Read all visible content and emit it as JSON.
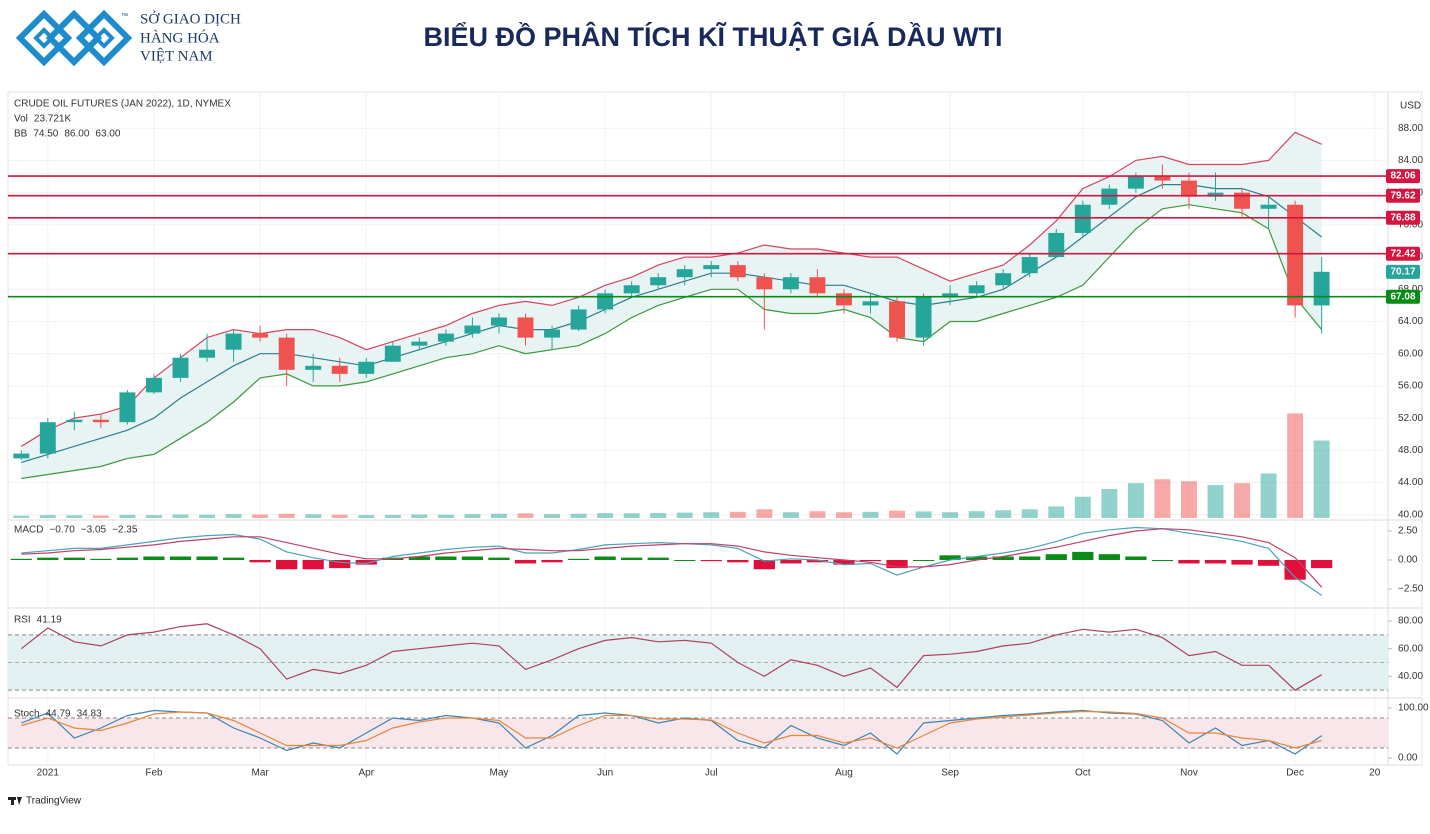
{
  "header": {
    "company": [
      "SỞ GIAO DỊCH",
      "HÀNG HÓA",
      "VIỆT NAM"
    ],
    "trademark": "™",
    "title": "BIỂU ĐỒ PHÂN TÍCH KĨ THUẬT GIÁ DẦU WTI"
  },
  "footer": {
    "brand": "TradingView"
  },
  "chart_data": [
    {
      "type": "candlestick",
      "legend_title": "CRUDE OIL FUTURES (JAN 2022), 1D, NYMEX",
      "currency": "USD",
      "grid": true,
      "categories": [
        null,
        "2021",
        null,
        null,
        null,
        "Feb",
        null,
        null,
        null,
        "Mar",
        null,
        null,
        null,
        "Apr",
        null,
        null,
        null,
        null,
        "May",
        null,
        null,
        null,
        "Jun",
        null,
        null,
        null,
        "Jul",
        null,
        null,
        null,
        null,
        "Aug",
        null,
        null,
        null,
        "Sep",
        null,
        null,
        null,
        null,
        "Oct",
        null,
        null,
        null,
        "Nov",
        null,
        null,
        null,
        "Dec",
        null,
        null,
        "20"
      ],
      "open": [
        47.0,
        47.6,
        51.5,
        51.8,
        51.5,
        55.2,
        57.0,
        59.5,
        60.5,
        62.5,
        62.0,
        58.0,
        58.5,
        57.5,
        59.0,
        61.0,
        61.5,
        62.5,
        63.5,
        64.5,
        62.0,
        63.0,
        65.5,
        67.5,
        68.5,
        69.5,
        70.5,
        71.0,
        69.5,
        68.0,
        69.5,
        67.5,
        66.0,
        66.5,
        62.0,
        67.0,
        67.5,
        68.5,
        70.0,
        72.0,
        75.0,
        78.5,
        80.5,
        82.0,
        81.5,
        79.5,
        80.0,
        78.0,
        78.5,
        66.0,
        null,
        null
      ],
      "high": [
        48.0,
        52.0,
        52.8,
        52.5,
        55.5,
        57.5,
        60.0,
        62.5,
        63.0,
        63.5,
        62.5,
        60.0,
        59.5,
        59.5,
        61.5,
        62.0,
        63.0,
        64.5,
        65.0,
        65.0,
        63.5,
        66.0,
        68.0,
        69.0,
        70.0,
        71.0,
        71.5,
        71.5,
        70.0,
        70.0,
        70.5,
        68.0,
        67.5,
        67.0,
        67.5,
        68.5,
        69.0,
        70.5,
        72.5,
        75.5,
        79.0,
        81.0,
        82.5,
        83.5,
        82.5,
        82.5,
        80.5,
        79.5,
        79.0,
        72.0,
        null,
        null
      ],
      "low": [
        46.8,
        47.0,
        50.5,
        50.8,
        51.2,
        55.0,
        56.5,
        59.0,
        59.0,
        61.5,
        56.0,
        56.5,
        56.5,
        57.0,
        59.0,
        60.5,
        61.0,
        62.0,
        62.5,
        61.0,
        60.5,
        62.8,
        65.0,
        67.0,
        68.0,
        68.5,
        69.5,
        69.0,
        63.0,
        67.5,
        67.0,
        65.0,
        65.0,
        61.5,
        61.0,
        66.0,
        67.0,
        68.0,
        69.5,
        72.0,
        74.5,
        78.0,
        80.0,
        80.5,
        78.0,
        79.0,
        77.0,
        75.5,
        64.5,
        62.5,
        null,
        null
      ],
      "close": [
        47.6,
        51.5,
        51.8,
        51.5,
        55.2,
        57.0,
        59.5,
        60.5,
        62.5,
        62.0,
        58.0,
        58.5,
        57.5,
        59.0,
        61.0,
        61.5,
        62.5,
        63.5,
        64.5,
        62.0,
        63.0,
        65.5,
        67.5,
        68.5,
        69.5,
        70.5,
        71.0,
        69.5,
        68.0,
        69.5,
        67.5,
        66.0,
        66.5,
        62.0,
        67.0,
        67.5,
        68.5,
        70.0,
        72.0,
        75.0,
        78.5,
        80.5,
        82.0,
        81.5,
        79.5,
        80.0,
        78.0,
        78.5,
        66.0,
        70.17,
        null,
        null
      ],
      "up_color": "#26a69a",
      "down_color": "#ef5350",
      "bollinger": {
        "name": "BB",
        "legend_values": [
          "74.50",
          "86.00",
          "63.00"
        ],
        "basis_color": "#2b7f8e",
        "upper_color": "#d6445e",
        "lower_color": "#3a9a3a",
        "fill": "#e8f3f3",
        "basis": [
          46.5,
          47.5,
          48.5,
          49.5,
          50.5,
          52.0,
          54.5,
          56.5,
          58.5,
          60.0,
          60.0,
          59.5,
          59.0,
          58.5,
          59.5,
          60.5,
          61.5,
          62.5,
          63.5,
          63.0,
          63.0,
          64.0,
          65.5,
          67.0,
          68.0,
          69.0,
          70.0,
          70.0,
          69.5,
          69.0,
          68.5,
          68.5,
          67.5,
          66.5,
          66.0,
          66.5,
          67.0,
          68.0,
          70.0,
          72.0,
          74.5,
          77.0,
          79.5,
          81.0,
          81.0,
          80.5,
          80.5,
          79.5,
          77.0,
          74.5,
          null,
          null
        ],
        "upper": [
          48.5,
          50.5,
          52.0,
          52.5,
          53.5,
          57.0,
          59.5,
          62.0,
          63.0,
          62.5,
          63.0,
          63.0,
          62.0,
          60.5,
          61.5,
          62.5,
          63.5,
          65.0,
          66.0,
          66.5,
          66.0,
          67.0,
          68.5,
          69.5,
          71.0,
          72.0,
          72.0,
          72.5,
          73.5,
          73.0,
          73.0,
          72.5,
          72.0,
          72.0,
          70.5,
          69.0,
          70.0,
          71.0,
          73.5,
          76.5,
          80.5,
          82.0,
          84.0,
          84.5,
          83.5,
          83.5,
          83.5,
          84.0,
          87.5,
          86.0,
          null,
          null
        ],
        "lower": [
          44.5,
          45.0,
          45.5,
          46.0,
          47.0,
          47.5,
          49.5,
          51.5,
          54.0,
          57.0,
          57.5,
          56.0,
          56.0,
          56.5,
          57.5,
          58.5,
          59.5,
          60.0,
          61.0,
          60.0,
          60.5,
          61.0,
          62.5,
          64.5,
          66.0,
          67.0,
          68.0,
          68.0,
          65.5,
          65.0,
          65.0,
          65.5,
          64.5,
          62.0,
          61.5,
          64.0,
          64.0,
          65.0,
          66.0,
          67.0,
          68.5,
          72.0,
          75.5,
          78.0,
          78.5,
          78.0,
          77.5,
          75.5,
          67.0,
          63.0,
          null,
          null
        ]
      },
      "volume": {
        "name": "Vol",
        "legend_value": "23.721K",
        "axis": "y2",
        "values": [
          12,
          15,
          14,
          13,
          16,
          15,
          18,
          17,
          20,
          18,
          22,
          19,
          17,
          15,
          16,
          18,
          17,
          20,
          22,
          24,
          20,
          22,
          25,
          24,
          26,
          28,
          30,
          32,
          45,
          30,
          35,
          30,
          32,
          38,
          34,
          30,
          35,
          40,
          45,
          60,
          110,
          150,
          180,
          200,
          190,
          170,
          180,
          230,
          540,
          400,
          null,
          null
        ]
      },
      "levels": [
        {
          "value": 82.06,
          "color": "#d3163f"
        },
        {
          "value": 79.62,
          "color": "#d3163f"
        },
        {
          "value": 76.88,
          "color": "#d3163f"
        },
        {
          "value": 72.42,
          "color": "#d3163f"
        },
        {
          "value": 67.08,
          "color": "#0a8a16"
        }
      ],
      "last_price": {
        "value": 70.17,
        "color": "#26a69a"
      },
      "ylim": [
        39.6,
        92.5
      ],
      "y2lim": [
        0,
        2200
      ],
      "yticks": [
        {
          "value": 40,
          "label": "40.00"
        },
        {
          "value": 44,
          "label": "44.00"
        },
        {
          "value": 48,
          "label": "48.00"
        },
        {
          "value": 52,
          "label": "52.00"
        },
        {
          "value": 56,
          "label": "56.00"
        },
        {
          "value": 60,
          "label": "60.00"
        },
        {
          "value": 64,
          "label": "64.00"
        },
        {
          "value": 68,
          "label": "68.00"
        },
        {
          "value": 72,
          "label": "72.00"
        },
        {
          "value": 76,
          "label": "76.00"
        },
        {
          "value": 80,
          "label": "80.00"
        },
        {
          "value": 84,
          "label": "84.00"
        },
        {
          "value": 88,
          "label": "88.00"
        }
      ]
    },
    {
      "type": "macd",
      "name": "MACD",
      "legend_values": [
        "−0.70",
        "−3.05",
        "−2.35"
      ],
      "ylim": [
        -3.88,
        3.36
      ],
      "yticks": [
        {
          "value": 2.5,
          "label": "2.50"
        },
        {
          "value": 0,
          "label": "0.00"
        },
        {
          "value": -2.5,
          "label": "−2.50"
        }
      ],
      "histogram": {
        "pos_color": "#0a8a16",
        "neg_color": "#e0103a",
        "values": [
          0.1,
          0.2,
          0.2,
          0.1,
          0.2,
          0.3,
          0.3,
          0.3,
          0.2,
          -0.2,
          -0.8,
          -0.8,
          -0.7,
          -0.4,
          0.2,
          0.3,
          0.3,
          0.3,
          0.2,
          -0.3,
          -0.2,
          0.1,
          0.3,
          0.2,
          0.2,
          0.0,
          -0.1,
          -0.2,
          -0.8,
          -0.3,
          -0.2,
          -0.4,
          -0.1,
          -0.7,
          0.0,
          0.4,
          0.3,
          0.3,
          0.3,
          0.5,
          0.7,
          0.5,
          0.3,
          0.0,
          -0.3,
          -0.3,
          -0.4,
          -0.5,
          -1.7,
          -0.7,
          null,
          null
        ]
      },
      "series": [
        {
          "color": "#4ba3b8",
          "values": [
            0.6,
            0.8,
            1.0,
            1.0,
            1.3,
            1.6,
            1.9,
            2.1,
            2.2,
            1.8,
            0.7,
            0.2,
            -0.2,
            -0.3,
            0.3,
            0.6,
            0.9,
            1.1,
            1.2,
            0.6,
            0.6,
            0.9,
            1.3,
            1.4,
            1.5,
            1.4,
            1.3,
            1.0,
            -0.1,
            0.1,
            0.0,
            -0.4,
            -0.3,
            -1.3,
            -0.6,
            0.0,
            0.3,
            0.6,
            1.0,
            1.6,
            2.3,
            2.6,
            2.8,
            2.7,
            2.3,
            2.0,
            1.6,
            1.0,
            -1.5,
            -3.05,
            null,
            null
          ]
        },
        {
          "color": "#c2406a",
          "values": [
            0.5,
            0.6,
            0.8,
            0.9,
            1.1,
            1.3,
            1.6,
            1.8,
            2.0,
            2.0,
            1.5,
            1.0,
            0.5,
            0.1,
            0.1,
            0.3,
            0.6,
            0.8,
            1.0,
            0.9,
            0.8,
            0.8,
            1.0,
            1.2,
            1.3,
            1.4,
            1.4,
            1.2,
            0.7,
            0.4,
            0.2,
            0.0,
            -0.2,
            -0.6,
            -0.6,
            -0.4,
            0.0,
            0.3,
            0.7,
            1.1,
            1.6,
            2.1,
            2.5,
            2.7,
            2.6,
            2.3,
            2.0,
            1.5,
            0.2,
            -2.35,
            null,
            null
          ]
        }
      ]
    },
    {
      "type": "rsi",
      "name": "RSI",
      "ylim": [
        26.5,
        88
      ],
      "band": [
        30,
        70
      ],
      "midline": 50,
      "band_color": "#e3f0f2",
      "yticks": [
        {
          "value": 80,
          "label": "80.00"
        },
        {
          "value": 60,
          "label": "60.00"
        },
        {
          "value": 40,
          "label": "40.00"
        }
      ],
      "series": [
        {
          "color": "#b0405e",
          "values": [
            60,
            75,
            65,
            62,
            70,
            72,
            76,
            78,
            70,
            60,
            38,
            45,
            42,
            48,
            58,
            60,
            62,
            64,
            62,
            45,
            52,
            60,
            66,
            68,
            65,
            66,
            64,
            50,
            40,
            52,
            48,
            40,
            46,
            32,
            55,
            56,
            58,
            62,
            64,
            70,
            74,
            72,
            74,
            68,
            55,
            58,
            48,
            48,
            30,
            41.19,
            null,
            null
          ]
        }
      ]
    },
    {
      "type": "stochastic",
      "name": "Stoch",
      "ylim": [
        -8,
        116
      ],
      "band": [
        20,
        80
      ],
      "band_color": "#f8e6ea",
      "yticks": [
        {
          "value": 100,
          "label": "100.00"
        },
        {
          "value": 0,
          "label": "0.00"
        }
      ],
      "series": [
        {
          "color": "#3a86b5",
          "values": [
            70,
            90,
            40,
            60,
            85,
            95,
            92,
            90,
            60,
            40,
            15,
            30,
            20,
            50,
            80,
            75,
            85,
            80,
            70,
            20,
            45,
            85,
            90,
            85,
            70,
            80,
            75,
            35,
            20,
            65,
            40,
            25,
            50,
            8,
            70,
            75,
            80,
            85,
            88,
            92,
            95,
            90,
            88,
            75,
            30,
            60,
            25,
            35,
            8,
            44.79,
            null,
            null
          ]
        },
        {
          "color": "#e8873a",
          "values": [
            65,
            80,
            60,
            55,
            70,
            88,
            92,
            90,
            75,
            50,
            25,
            25,
            25,
            35,
            60,
            72,
            80,
            80,
            75,
            40,
            40,
            65,
            85,
            85,
            78,
            78,
            76,
            50,
            30,
            45,
            45,
            30,
            40,
            20,
            45,
            70,
            78,
            82,
            86,
            90,
            93,
            92,
            89,
            80,
            50,
            50,
            40,
            35,
            20,
            34.83,
            null,
            null
          ]
        }
      ]
    }
  ]
}
